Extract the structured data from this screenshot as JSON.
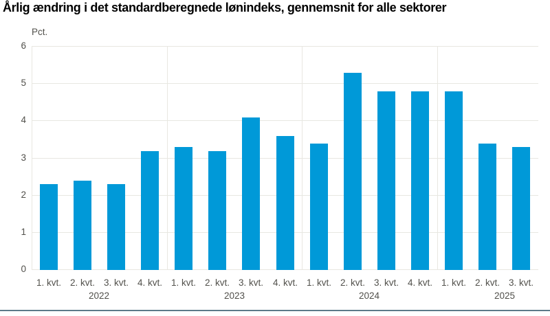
{
  "page": {
    "title": "Årlig ændring i det standardberegnede lønindeks, gennemsnit for alle sektorer"
  },
  "chart_data": {
    "type": "bar",
    "title": "Årlig ændring i det standardberegnede lønindeks, gennemsnit for alle sektorer",
    "unit_label": "Pct.",
    "ylabel": "Pct.",
    "xlabel": "",
    "ylim": [
      0,
      6
    ],
    "ytick_interval": 1,
    "ytick_labels": [
      "0",
      "1",
      "2",
      "3",
      "4",
      "5",
      "6"
    ],
    "grid": true,
    "legend": false,
    "categories": [
      "1. kvt.",
      "2. kvt.",
      "3. kvt.",
      "4. kvt.",
      "1. kvt.",
      "2. kvt.",
      "3. kvt.",
      "4. kvt.",
      "1. kvt.",
      "2. kvt.",
      "3. kvt.",
      "4. kvt.",
      "1. kvt.",
      "2. kvt.",
      "3. kvt."
    ],
    "values": [
      2.3,
      2.4,
      2.3,
      3.2,
      3.3,
      3.2,
      4.1,
      3.6,
      3.4,
      5.3,
      4.8,
      4.8,
      4.8,
      3.4,
      3.3
    ],
    "year_groups": [
      {
        "year": "2022",
        "quarters": 4
      },
      {
        "year": "2023",
        "quarters": 4
      },
      {
        "year": "2024",
        "quarters": 4
      },
      {
        "year": "2025",
        "quarters": 3
      }
    ],
    "colors": {
      "bar": "#0099d8",
      "grid": "#e8e7e1",
      "axis_text": "#51504b",
      "title_text": "#000000",
      "bottom_rule": "#5d7a89",
      "background": "#ffffff"
    }
  }
}
